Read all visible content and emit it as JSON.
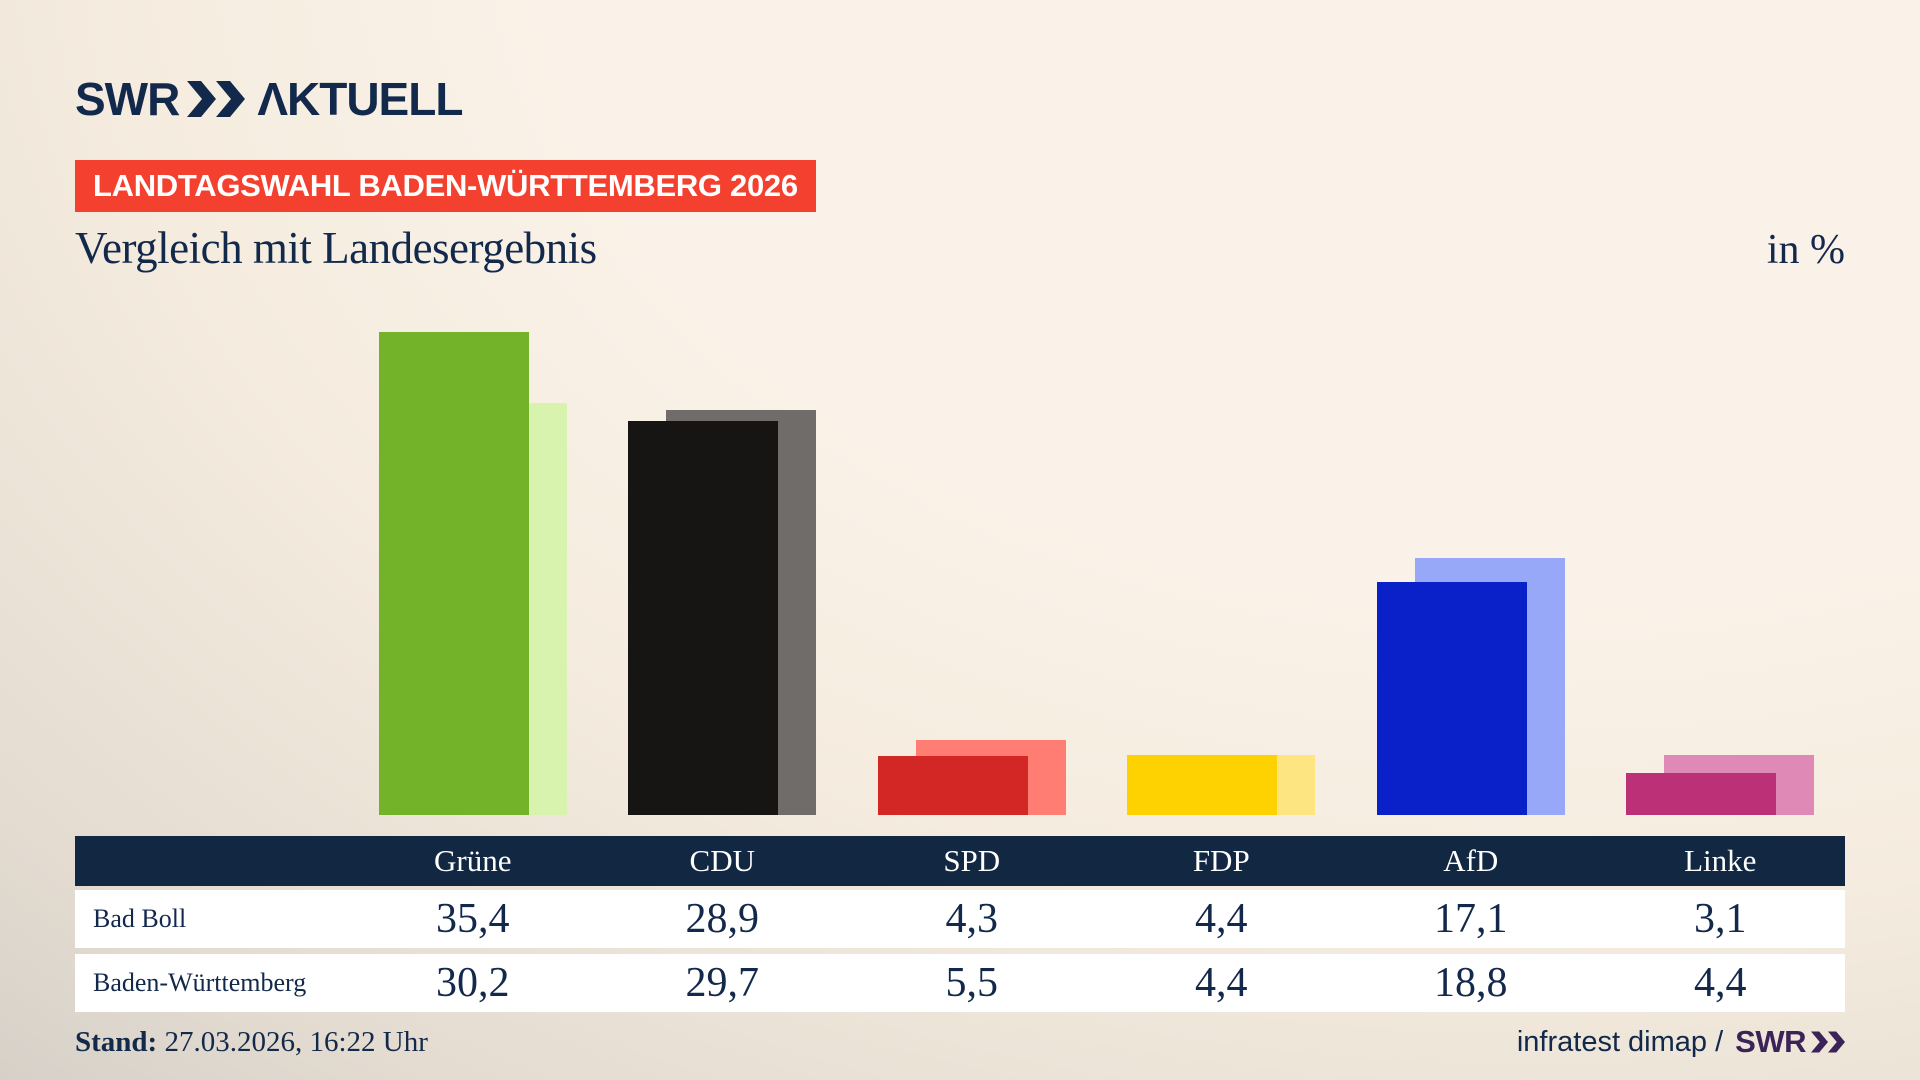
{
  "brand": {
    "logo_text": "SWR",
    "logo_suffix": "ΛKTUELL"
  },
  "badge": {
    "label": "LANDTAGSWAHL BADEN-WÜRTTEMBERG 2026",
    "bg": "#f4402f",
    "fg": "#ffffff"
  },
  "heading": {
    "title": "Vergleich mit Landesergebnis",
    "unit": "in %"
  },
  "chart_data": {
    "type": "bar",
    "title": "Vergleich mit Landesergebnis",
    "unit": "in %",
    "categories": [
      "Grüne",
      "CDU",
      "SPD",
      "FDP",
      "AfD",
      "Linke"
    ],
    "keys": [
      "gruene",
      "cdu",
      "spd",
      "fdp",
      "afd",
      "linke"
    ],
    "series": [
      {
        "name": "Bad Boll",
        "key": "bad-boll",
        "values": [
          35.4,
          28.9,
          4.3,
          4.4,
          17.1,
          3.1
        ]
      },
      {
        "name": "Baden-Württemberg",
        "key": "baden-wuerttemberg",
        "values": [
          30.2,
          29.7,
          5.5,
          4.4,
          18.8,
          4.4
        ]
      }
    ],
    "colors": [
      {
        "fg": "#72b32a",
        "bg": "#d7f3ae"
      },
      {
        "fg": "#161514",
        "bg": "#6f6c69"
      },
      {
        "fg": "#d32726",
        "bg": "#ff7d73"
      },
      {
        "fg": "#fdd200",
        "bg": "#fde582"
      },
      {
        "fg": "#0a20c8",
        "bg": "#97a8f8"
      },
      {
        "fg": "#bb3077",
        "bg": "#df8ab6"
      }
    ],
    "ylim": [
      0,
      36
    ],
    "grid": false,
    "legend_position": "table-below"
  },
  "table": {
    "header": [
      "Grüne",
      "CDU",
      "SPD",
      "FDP",
      "AfD",
      "Linke"
    ],
    "rows": [
      {
        "label": "Bad Boll",
        "values": [
          "35,4",
          "28,9",
          "4,3",
          "4,4",
          "17,1",
          "3,1"
        ]
      },
      {
        "label": "Baden-Württemberg",
        "values": [
          "30,2",
          "29,7",
          "5,5",
          "4,4",
          "18,8",
          "4,4"
        ]
      }
    ]
  },
  "footer": {
    "stand_label": "Stand:",
    "stand_value": " 27.03.2026, 16:22 Uhr",
    "source": "infratest dimap /",
    "source_brand": "SWR"
  },
  "theme": {
    "navy": "#13294b",
    "purple": "#3b2357",
    "table_header_bg": "#122742",
    "row_bg": "#ffffff"
  }
}
